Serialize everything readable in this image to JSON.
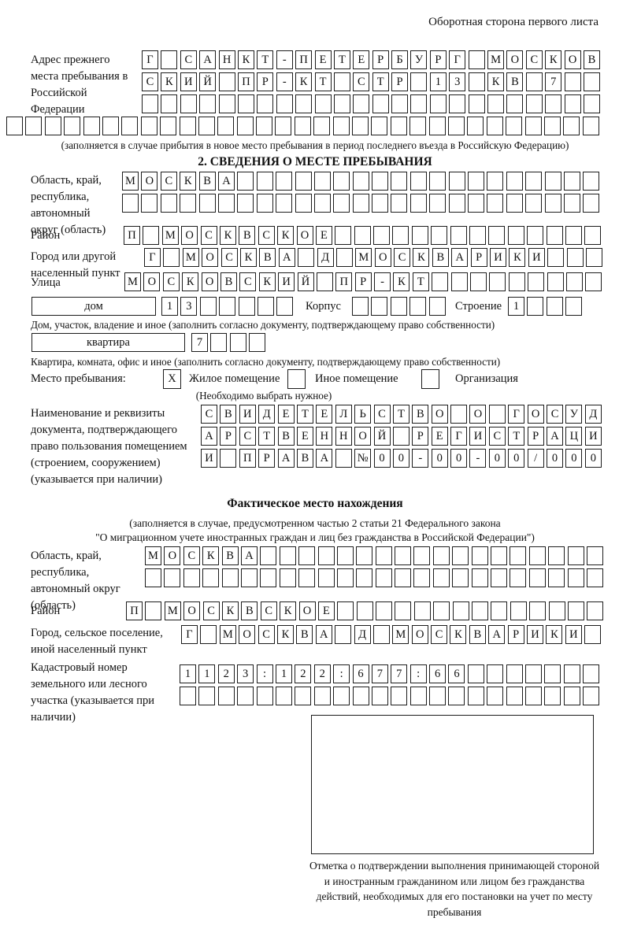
{
  "header": {
    "note": "Оборотная сторона первого листа"
  },
  "prev_address": {
    "label": "Адрес прежнего места пребывания в Российской Федерации",
    "rows": [
      "Г САНКТ-ПЕТЕРБУРГ МОСКОВ",
      "СКИЙ ПР-КТ СТР 13 КВ 7  ",
      "                        ",
      "                               "
    ],
    "caption": "(заполняется в случае прибытия в новое место пребывания в период последнего въезда в Российскую Федерацию)"
  },
  "section2": {
    "title": "2. СВЕДЕНИЯ О МЕСТЕ ПРЕБЫВАНИЯ",
    "region": {
      "label": "Область, край, республика, автономный округ (область)",
      "rows": [
        "МОСКВА                   ",
        "                         "
      ]
    },
    "district": {
      "label": "Район",
      "value": "П МОСКВСКОЕ              "
    },
    "city": {
      "label": "Город или другой населенный пункт",
      "value": "Г МОСКВА Д МОСКВАРИКИ   "
    },
    "street": {
      "label": "Улица",
      "value": "МОСКОВСКИЙ ПР-КТ         "
    },
    "house": {
      "box_label": "дом",
      "value": "13     ",
      "korpus_label": "Корпус",
      "korpus_value": "     ",
      "stroenie_label": "Строение",
      "stroenie_value": "1   ",
      "caption": "Дом, участок, владение и иное (заполнить согласно документу, подтверждающему право собственности)"
    },
    "apartment": {
      "box_label": "квартира",
      "value": "7   ",
      "caption": "Квартира, комната, офис и иное (заполнить согласно документу, подтверждающему право собственности)"
    },
    "stay_type": {
      "label": "Место пребывания:",
      "options": [
        {
          "label": "Жилое помещение",
          "checked": "X"
        },
        {
          "label": "Иное помещение",
          "checked": ""
        },
        {
          "label": "Организация",
          "checked": ""
        }
      ],
      "caption": "(Необходимо выбрать нужное)"
    },
    "document": {
      "label": "Наименование и реквизиты документа, подтверждающего право пользования помещением (строением, сооружением) (указывается при наличии)",
      "rows": [
        "СВИДЕТЕЛЬСТВО О ГОСУД",
        "АРСТВЕННОЙ РЕГИСТРАЦИ",
        "И ПРАВА №00-00-00/000"
      ]
    }
  },
  "actual_location": {
    "title": "Фактическое место нахождения",
    "subtitle_line1": "(заполняется в случае, предусмотренном частью 2 статьи 21 Федерального закона",
    "subtitle_line2": "\"О миграционном учете иностранных граждан и лиц без гражданства в Российской Федерации\")",
    "region": {
      "label": "Область, край, республика, автономный округ (область)",
      "rows": [
        "МОСКВА                  ",
        "                        "
      ]
    },
    "district": {
      "label": "Район",
      "value": "П МОСКВСКОЕ              "
    },
    "settlement": {
      "label": "Город, сельское поселение, иной населенный пункт",
      "value": "Г МОСКВА Д МОСКВАРИКИ "
    },
    "cadastral": {
      "label": "Кадастровый номер земельного или лесного участка (указывается при наличии)",
      "rows": [
        "1123:122:677:66       ",
        "                      "
      ]
    }
  },
  "stamp": {
    "caption": "Отметка о подтверждении выполнения принимающей стороной и иностранным гражданином или лицом без гражданства действий, необходимых для его постановки на учет по месту пребывания"
  }
}
